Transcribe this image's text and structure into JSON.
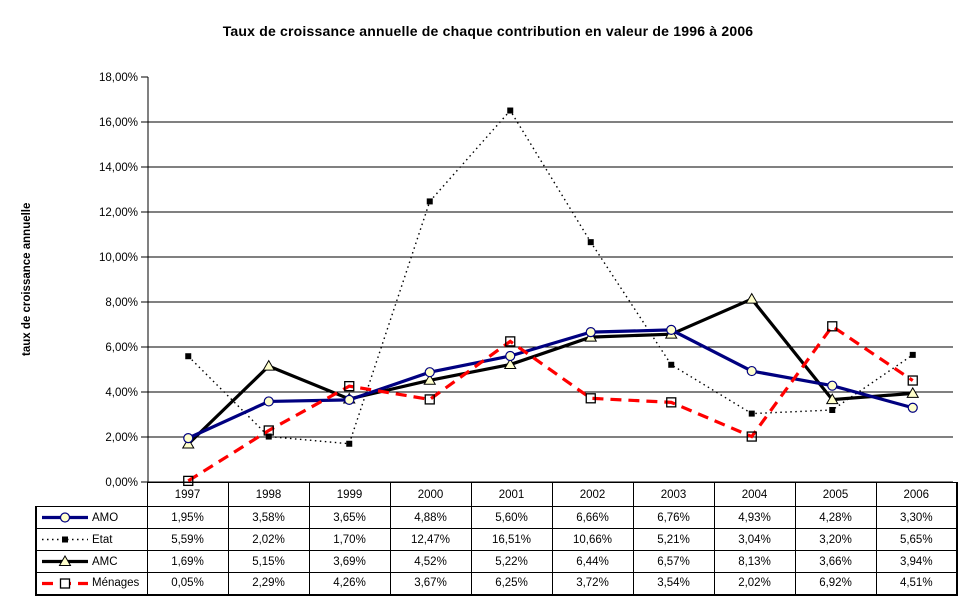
{
  "chart_data": {
    "type": "line",
    "title": "Taux de croissance annuelle de chaque contribution en valeur de 1996 à 2006",
    "ylabel": "taux de croissance annuelle",
    "xlabel": "",
    "categories": [
      "1997",
      "1998",
      "1999",
      "2000",
      "2001",
      "2002",
      "2003",
      "2004",
      "2005",
      "2006"
    ],
    "series": [
      {
        "name": "AMO",
        "color": "#000080",
        "line": "solid",
        "marker": "circle",
        "marker_fill": "#FFFFCC",
        "values": [
          1.95,
          3.58,
          3.65,
          4.88,
          5.6,
          6.66,
          6.76,
          4.93,
          4.28,
          3.3
        ]
      },
      {
        "name": "Etat",
        "color": "#000000",
        "line": "dotted",
        "marker": "square-filled",
        "marker_fill": "#000000",
        "values": [
          5.59,
          2.02,
          1.7,
          12.47,
          16.51,
          10.66,
          5.21,
          3.04,
          3.2,
          5.65
        ]
      },
      {
        "name": "AMC",
        "color": "#000000",
        "line": "solid",
        "marker": "triangle",
        "marker_fill": "#FFFFCC",
        "values": [
          1.69,
          5.15,
          3.69,
          4.52,
          5.22,
          6.44,
          6.57,
          8.13,
          3.66,
          3.94
        ]
      },
      {
        "name": "Ménages",
        "color": "#FF0000",
        "line": "dashed",
        "marker": "square-open",
        "marker_fill": "none",
        "values": [
          0.05,
          2.29,
          4.26,
          3.67,
          6.25,
          3.72,
          3.54,
          2.02,
          6.92,
          4.51
        ]
      }
    ],
    "ylim": [
      0,
      18
    ],
    "y_tick_step": 2,
    "y_tick_labels": [
      "0,00%",
      "2,00%",
      "4,00%",
      "6,00%",
      "8,00%",
      "10,00%",
      "12,00%",
      "14,00%",
      "16,00%",
      "18,00%"
    ],
    "grid": "horizontal",
    "legend_position": "table-left-column"
  },
  "table": {
    "columns": [
      "",
      "1997",
      "1998",
      "1999",
      "2000",
      "2001",
      "2002",
      "2003",
      "2004",
      "2005",
      "2006"
    ],
    "rows": [
      {
        "label": "AMO",
        "cells": [
          "1,95%",
          "3,58%",
          "3,65%",
          "4,88%",
          "5,60%",
          "6,66%",
          "6,76%",
          "4,93%",
          "4,28%",
          "3,30%"
        ]
      },
      {
        "label": "Etat",
        "cells": [
          "5,59%",
          "2,02%",
          "1,70%",
          "12,47%",
          "16,51%",
          "10,66%",
          "5,21%",
          "3,04%",
          "3,20%",
          "5,65%"
        ]
      },
      {
        "label": "AMC",
        "cells": [
          "1,69%",
          "5,15%",
          "3,69%",
          "4,52%",
          "5,22%",
          "6,44%",
          "6,57%",
          "8,13%",
          "3,66%",
          "3,94%"
        ]
      },
      {
        "label": "Ménages",
        "cells": [
          "0,05%",
          "2,29%",
          "4,26%",
          "3,67%",
          "6,25%",
          "3,72%",
          "3,54%",
          "2,02%",
          "6,92%",
          "4,51%"
        ]
      }
    ]
  }
}
